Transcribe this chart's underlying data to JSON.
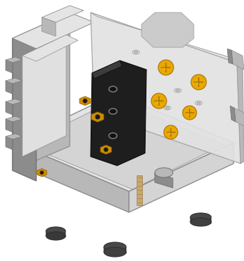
{
  "background_color": "#ffffff",
  "figsize": [
    3.5,
    3.75
  ],
  "dpi": 100,
  "colors": {
    "gray_light": "#d4d4d4",
    "gray_mid": "#b8b8b8",
    "gray_dark": "#8c8c8c",
    "gray_darker": "#6e6e6e",
    "gray_edge": "#606060",
    "gray_very_light": "#e4e4e4",
    "transparent_plate": "#dcdcdc",
    "transparent_edge": "#a0a0a0",
    "orange_bright": "#e8a800",
    "orange_mid": "#d09000",
    "orange_dark": "#a87000",
    "orange_shaft": "#c08000",
    "black_pcb": "#1e1e1e",
    "black_pcb_edge": "#0a0a0a",
    "dark_gray_foot": "#484848",
    "foot_top": "#585858",
    "tan_bolt": "#c8a86c",
    "tan_bolt_dark": "#9c8050",
    "white_hole": "#e8e8e8",
    "hole_edge": "#909090"
  },
  "canvas": {
    "xlim": [
      0,
      350
    ],
    "ylim": [
      0,
      375
    ]
  }
}
